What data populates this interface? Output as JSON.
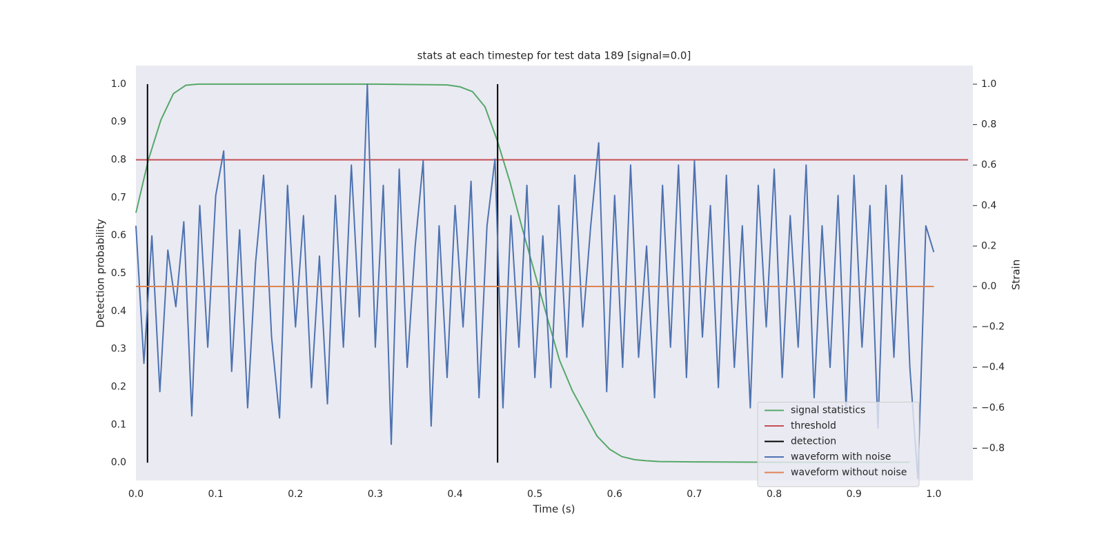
{
  "chart_data": {
    "type": "line",
    "title": "stats at each timestep for test data 189 [signal=0.0]",
    "x_label": "Time (s)",
    "y_label": "Detection probability",
    "y2_label": "Strain",
    "grid": true,
    "legend": "lower right",
    "xlim": [
      0,
      1.049
    ],
    "ylim": [
      -0.047,
      1.049
    ],
    "y2lim": [
      -0.959,
      1.092
    ],
    "xticks": [
      {
        "value": 0,
        "label": "0.0"
      },
      0.1,
      0.2,
      0.3,
      0.4,
      0.5,
      0.6,
      0.7,
      0.8,
      0.9,
      {
        "value": 1,
        "label": "1.0"
      }
    ],
    "yticks": [
      {
        "value": 0,
        "label": "0.0"
      },
      0.1,
      0.2,
      0.3,
      0.4,
      0.5,
      0.6,
      0.7,
      0.8,
      0.9,
      {
        "value": 1,
        "label": "1.0"
      }
    ],
    "y2ticks": [
      {
        "value": -0.8,
        "label": "−0.8"
      },
      {
        "value": -0.6,
        "label": "−0.6"
      },
      {
        "value": -0.4,
        "label": "−0.4"
      },
      {
        "value": -0.2,
        "label": "−0.2"
      },
      {
        "value": 0,
        "label": "0.0"
      },
      0.2,
      0.4,
      0.6,
      0.8,
      {
        "value": 1,
        "label": "1.0"
      }
    ],
    "series": [
      {
        "name": "signal statistics",
        "color": "#55a868",
        "x": [
          0,
          0.0156,
          0.03125,
          0.047,
          0.0625,
          0.078,
          0.1,
          0.2,
          0.3,
          0.39,
          0.406,
          0.422,
          0.4375,
          0.453,
          0.469,
          0.484,
          0.5,
          0.516,
          0.531,
          0.547,
          0.5625,
          0.578,
          0.594,
          0.609,
          0.625,
          0.64,
          0.656,
          0.7,
          0.8,
          0.9,
          0.95,
          0.97
        ],
        "values": [
          0.66,
          0.8,
          0.905,
          0.975,
          0.997,
          1,
          1,
          1,
          1,
          0.998,
          0.993,
          0.98,
          0.94,
          0.85,
          0.74,
          0.62,
          0.5,
          0.38,
          0.27,
          0.19,
          0.13,
          0.07,
          0.035,
          0.016,
          0.008,
          0.005,
          0.003,
          0.002,
          0.001,
          0.001,
          0.001,
          0.001
        ]
      },
      {
        "name": "threshold",
        "color": "#c44e52",
        "x": [
          0,
          1.043
        ],
        "values": [
          0.8,
          0.8
        ]
      },
      {
        "name": "detection",
        "color": "#000000",
        "style": "vlines",
        "x": [
          0.0145,
          0.4533
        ],
        "values": [
          1,
          1
        ]
      },
      {
        "name": "waveform with noise",
        "color": "#4c72b0",
        "axis": "y2",
        "x": [
          0,
          0.01,
          0.02,
          0.03,
          0.04,
          0.05,
          0.06,
          0.07,
          0.08,
          0.09,
          0.1,
          0.11,
          0.12,
          0.13,
          0.14,
          0.15,
          0.16,
          0.17,
          0.18,
          0.19,
          0.2,
          0.21,
          0.22,
          0.23,
          0.24,
          0.25,
          0.26,
          0.27,
          0.28,
          0.29,
          0.3,
          0.31,
          0.32,
          0.33,
          0.34,
          0.35,
          0.36,
          0.37,
          0.38,
          0.39,
          0.4,
          0.41,
          0.42,
          0.43,
          0.44,
          0.45,
          0.46,
          0.47,
          0.48,
          0.49,
          0.5,
          0.51,
          0.52,
          0.53,
          0.54,
          0.55,
          0.56,
          0.57,
          0.58,
          0.59,
          0.6,
          0.61,
          0.62,
          0.63,
          0.64,
          0.65,
          0.66,
          0.67,
          0.68,
          0.69,
          0.7,
          0.71,
          0.72,
          0.73,
          0.74,
          0.75,
          0.76,
          0.77,
          0.78,
          0.79,
          0.8,
          0.81,
          0.82,
          0.83,
          0.84,
          0.85,
          0.86,
          0.87,
          0.88,
          0.89,
          0.9,
          0.91,
          0.92,
          0.93,
          0.94,
          0.95,
          0.96,
          0.97,
          0.98,
          0.99,
          1
        ],
        "values": [
          0.3,
          -0.38,
          0.25,
          -0.52,
          0.18,
          -0.1,
          0.32,
          -0.64,
          0.4,
          -0.3,
          0.45,
          0.67,
          -0.42,
          0.28,
          -0.6,
          0.12,
          0.55,
          -0.25,
          -0.65,
          0.5,
          -0.2,
          0.35,
          -0.5,
          0.15,
          -0.58,
          0.45,
          -0.3,
          0.6,
          -0.15,
          1.0,
          -0.3,
          0.5,
          -0.78,
          0.58,
          -0.4,
          0.2,
          0.62,
          -0.69,
          0.3,
          -0.45,
          0.4,
          -0.2,
          0.52,
          -0.55,
          0.3,
          0.63,
          -0.6,
          0.35,
          -0.3,
          0.5,
          -0.45,
          0.25,
          -0.5,
          0.4,
          -0.35,
          0.55,
          -0.2,
          0.3,
          0.71,
          -0.52,
          0.45,
          -0.4,
          0.6,
          -0.35,
          0.2,
          -0.55,
          0.5,
          -0.3,
          0.6,
          -0.45,
          0.62,
          -0.25,
          0.4,
          -0.5,
          0.55,
          -0.4,
          0.3,
          -0.6,
          0.5,
          -0.2,
          0.58,
          -0.45,
          0.35,
          -0.3,
          0.6,
          -0.55,
          0.3,
          -0.4,
          0.45,
          -0.6,
          0.55,
          -0.3,
          0.4,
          -0.7,
          0.5,
          -0.35,
          0.55,
          -0.4,
          -0.95,
          0.3,
          0.17
        ]
      },
      {
        "name": "waveform without noise",
        "color": "#dd8452",
        "axis": "y2",
        "x": [
          0,
          1
        ],
        "values": [
          0,
          0
        ]
      }
    ]
  }
}
